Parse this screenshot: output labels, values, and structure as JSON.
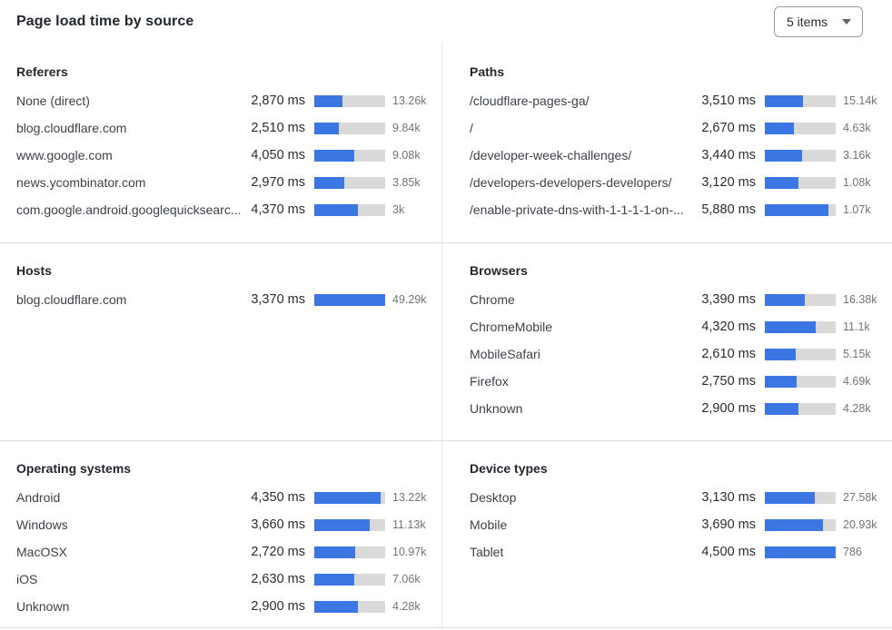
{
  "header": {
    "title": "Page load time by source",
    "dropdown_label": "5 items"
  },
  "colors": {
    "bar_fill": "#3b76e3",
    "bar_track": "#d9d9d9",
    "divider": "#dedede"
  },
  "panels": [
    {
      "title": "Referers",
      "rows": [
        {
          "label": "None (direct)",
          "ms": "2,870 ms",
          "count": "13.26k",
          "bar_pct": 40
        },
        {
          "label": "blog.cloudflare.com",
          "ms": "2,510 ms",
          "count": "9.84k",
          "bar_pct": 35
        },
        {
          "label": "www.google.com",
          "ms": "4,050 ms",
          "count": "9.08k",
          "bar_pct": 56
        },
        {
          "label": "news.ycombinator.com",
          "ms": "2,970 ms",
          "count": "3.85k",
          "bar_pct": 42
        },
        {
          "label": "com.google.android.googlequicksearc...",
          "ms": "4,370 ms",
          "count": "3k",
          "bar_pct": 61
        }
      ]
    },
    {
      "title": "Paths",
      "rows": [
        {
          "label": "/cloudflare-pages-ga/",
          "ms": "3,510 ms",
          "count": "15.14k",
          "bar_pct": 54
        },
        {
          "label": "/",
          "ms": "2,670 ms",
          "count": "4.63k",
          "bar_pct": 41
        },
        {
          "label": "/developer-week-challenges/",
          "ms": "3,440 ms",
          "count": "3.16k",
          "bar_pct": 53
        },
        {
          "label": "/developers-developers-developers/",
          "ms": "3,120 ms",
          "count": "1.08k",
          "bar_pct": 48
        },
        {
          "label": "/enable-private-dns-with-1-1-1-1-on-...",
          "ms": "5,880 ms",
          "count": "1.07k",
          "bar_pct": 90
        }
      ]
    },
    {
      "title": "Hosts",
      "rows": [
        {
          "label": "blog.cloudflare.com",
          "ms": "3,370 ms",
          "count": "49.29k",
          "bar_pct": 100
        }
      ]
    },
    {
      "title": "Browsers",
      "rows": [
        {
          "label": "Chrome",
          "ms": "3,390 ms",
          "count": "16.38k",
          "bar_pct": 56
        },
        {
          "label": "ChromeMobile",
          "ms": "4,320 ms",
          "count": "11.1k",
          "bar_pct": 72
        },
        {
          "label": "MobileSafari",
          "ms": "2,610 ms",
          "count": "5.15k",
          "bar_pct": 43
        },
        {
          "label": "Firefox",
          "ms": "2,750 ms",
          "count": "4.69k",
          "bar_pct": 45
        },
        {
          "label": "Unknown",
          "ms": "2,900 ms",
          "count": "4.28k",
          "bar_pct": 48
        }
      ]
    },
    {
      "title": "Operating systems",
      "rows": [
        {
          "label": "Android",
          "ms": "4,350 ms",
          "count": "13.22k",
          "bar_pct": 94
        },
        {
          "label": "Windows",
          "ms": "3,660 ms",
          "count": "11.13k",
          "bar_pct": 78
        },
        {
          "label": "MacOSX",
          "ms": "2,720 ms",
          "count": "10.97k",
          "bar_pct": 58
        },
        {
          "label": "iOS",
          "ms": "2,630 ms",
          "count": "7.06k",
          "bar_pct": 56
        },
        {
          "label": "Unknown",
          "ms": "2,900 ms",
          "count": "4.28k",
          "bar_pct": 62
        }
      ]
    },
    {
      "title": "Device types",
      "rows": [
        {
          "label": "Desktop",
          "ms": "3,130 ms",
          "count": "27.58k",
          "bar_pct": 70
        },
        {
          "label": "Mobile",
          "ms": "3,690 ms",
          "count": "20.93k",
          "bar_pct": 82
        },
        {
          "label": "Tablet",
          "ms": "4,500 ms",
          "count": "786",
          "bar_pct": 100
        }
      ]
    }
  ],
  "chart_data": [
    {
      "type": "bar",
      "title": "Referers",
      "categories": [
        "None (direct)",
        "blog.cloudflare.com",
        "www.google.com",
        "news.ycombinator.com",
        "com.google.android.googlequicksearc..."
      ],
      "values_ms": [
        2870,
        2510,
        4050,
        2970,
        4370
      ],
      "counts": [
        "13.26k",
        "9.84k",
        "9.08k",
        "3.85k",
        "3k"
      ],
      "ylabel": "ms"
    },
    {
      "type": "bar",
      "title": "Paths",
      "categories": [
        "/cloudflare-pages-ga/",
        "/",
        "/developer-week-challenges/",
        "/developers-developers-developers/",
        "/enable-private-dns-with-1-1-1-1-on-..."
      ],
      "values_ms": [
        3510,
        2670,
        3440,
        3120,
        5880
      ],
      "counts": [
        "15.14k",
        "4.63k",
        "3.16k",
        "1.08k",
        "1.07k"
      ],
      "ylabel": "ms"
    },
    {
      "type": "bar",
      "title": "Hosts",
      "categories": [
        "blog.cloudflare.com"
      ],
      "values_ms": [
        3370
      ],
      "counts": [
        "49.29k"
      ],
      "ylabel": "ms"
    },
    {
      "type": "bar",
      "title": "Browsers",
      "categories": [
        "Chrome",
        "ChromeMobile",
        "MobileSafari",
        "Firefox",
        "Unknown"
      ],
      "values_ms": [
        3390,
        4320,
        2610,
        2750,
        2900
      ],
      "counts": [
        "16.38k",
        "11.1k",
        "5.15k",
        "4.69k",
        "4.28k"
      ],
      "ylabel": "ms"
    },
    {
      "type": "bar",
      "title": "Operating systems",
      "categories": [
        "Android",
        "Windows",
        "MacOSX",
        "iOS",
        "Unknown"
      ],
      "values_ms": [
        4350,
        3660,
        2720,
        2630,
        2900
      ],
      "counts": [
        "13.22k",
        "11.13k",
        "10.97k",
        "7.06k",
        "4.28k"
      ],
      "ylabel": "ms"
    },
    {
      "type": "bar",
      "title": "Device types",
      "categories": [
        "Desktop",
        "Mobile",
        "Tablet"
      ],
      "values_ms": [
        3130,
        3690,
        4500
      ],
      "counts": [
        "27.58k",
        "20.93k",
        "786"
      ],
      "ylabel": "ms"
    }
  ]
}
